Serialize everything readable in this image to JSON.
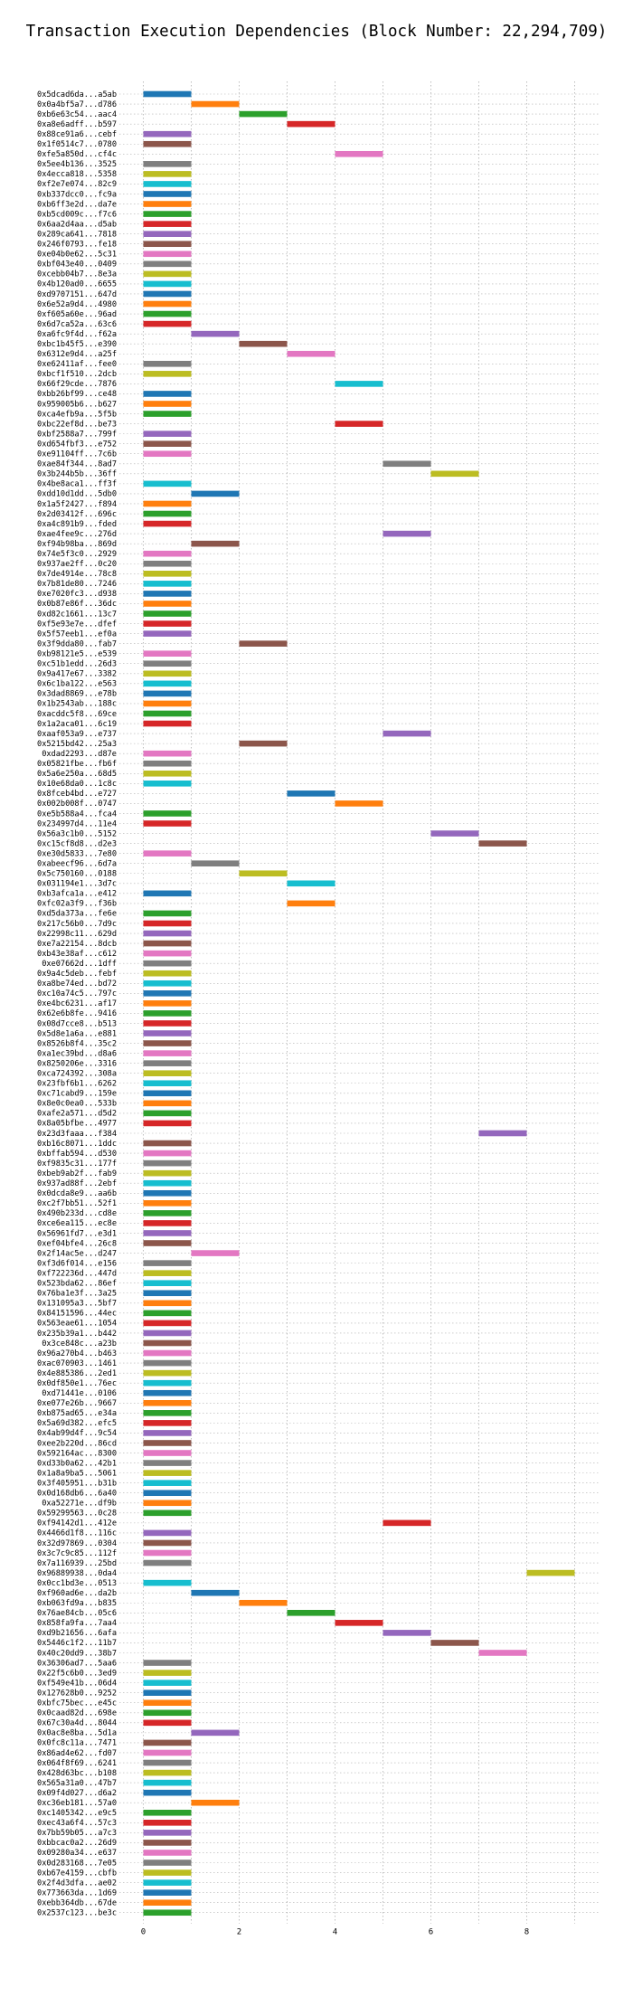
{
  "chart_data": {
    "type": "gantt",
    "title": "Transaction Execution Dependencies (Block Number: 22,294,709)",
    "xlabel": "",
    "ylabel": "",
    "grid": true,
    "xlim": [
      -0.5,
      9.5
    ],
    "xticks": [
      0,
      2,
      4,
      6,
      8
    ],
    "palette": [
      "#1f77b4",
      "#ff7f0e",
      "#2ca02c",
      "#d62728",
      "#9467bd",
      "#8c564b",
      "#e377c2",
      "#7f7f7f",
      "#bcbd22",
      "#17becf"
    ],
    "rows": [
      {
        "label": "0x5dcad6da...a5ab",
        "start": 0
      },
      {
        "label": "0x0a4bf5a7...d786",
        "start": 1
      },
      {
        "label": "0xb6e63c54...aac4",
        "start": 2
      },
      {
        "label": "0xa8e6adff...b597",
        "start": 3
      },
      {
        "label": "0x88ce91a6...cebf",
        "start": 0
      },
      {
        "label": "0x1f0514c7...0780",
        "start": 0
      },
      {
        "label": "0xfe5a850d...cf4c",
        "start": 4
      },
      {
        "label": "0x5ee4b136...3525",
        "start": 0
      },
      {
        "label": "0x4ecca818...5358",
        "start": 0
      },
      {
        "label": "0xf2e7e074...82c9",
        "start": 0
      },
      {
        "label": "0xb337dcc0...fc9a",
        "start": 0
      },
      {
        "label": "0xb6ff3e2d...da7e",
        "start": 0
      },
      {
        "label": "0xb5cd009c...f7c6",
        "start": 0
      },
      {
        "label": "0x6aa2d4aa...d5ab",
        "start": 0
      },
      {
        "label": "0x289ca641...7818",
        "start": 0
      },
      {
        "label": "0x246f0793...fe18",
        "start": 0
      },
      {
        "label": "0xe04b0e62...5c31",
        "start": 0
      },
      {
        "label": "0xbf043e40...0409",
        "start": 0
      },
      {
        "label": "0xcebb04b7...8e3a",
        "start": 0
      },
      {
        "label": "0x4b120ad0...6655",
        "start": 0
      },
      {
        "label": "0xd9707151...647d",
        "start": 0
      },
      {
        "label": "0x6e52a9d4...4980",
        "start": 0
      },
      {
        "label": "0xf605a60e...96ad",
        "start": 0
      },
      {
        "label": "0x6d7ca52a...63c6",
        "start": 0
      },
      {
        "label": "0xa6fc9f4d...f62a",
        "start": 1
      },
      {
        "label": "0xbc1b45f5...e390",
        "start": 2
      },
      {
        "label": "0x6312e9d4...a25f",
        "start": 3
      },
      {
        "label": "0xe62411af...fee0",
        "start": 0
      },
      {
        "label": "0xbcf1f510...2dcb",
        "start": 0
      },
      {
        "label": "0x66f29cde...7876",
        "start": 4
      },
      {
        "label": "0xbb26bf99...ce48",
        "start": 0
      },
      {
        "label": "0x959005b6...b627",
        "start": 0
      },
      {
        "label": "0xca4efb9a...5f5b",
        "start": 0
      },
      {
        "label": "0xbc22ef8d...be73",
        "start": 4
      },
      {
        "label": "0xbf2588a7...799f",
        "start": 0
      },
      {
        "label": "0xd654fbf3...e752",
        "start": 0
      },
      {
        "label": "0xe91104ff...7c6b",
        "start": 0
      },
      {
        "label": "0xae84f344...8ad7",
        "start": 5
      },
      {
        "label": "0x3b244b5b...36ff",
        "start": 6
      },
      {
        "label": "0x4be8aca1...ff3f",
        "start": 0
      },
      {
        "label": "0xdd10d1dd...5db0",
        "start": 1
      },
      {
        "label": "0x1a5f2427...f894",
        "start": 0
      },
      {
        "label": "0x2d03412f...696c",
        "start": 0
      },
      {
        "label": "0xa4c891b9...fded",
        "start": 0
      },
      {
        "label": "0xae4fee9c...276d",
        "start": 5
      },
      {
        "label": "0xf94b98ba...869d",
        "start": 1
      },
      {
        "label": "0x74e5f3c0...2929",
        "start": 0
      },
      {
        "label": "0x937ae2ff...0c20",
        "start": 0
      },
      {
        "label": "0x7de4914e...78c8",
        "start": 0
      },
      {
        "label": "0x7b81de80...7246",
        "start": 0
      },
      {
        "label": "0xe7020fc3...d938",
        "start": 0
      },
      {
        "label": "0x0b87e86f...36dc",
        "start": 0
      },
      {
        "label": "0xd82c1661...13c7",
        "start": 0
      },
      {
        "label": "0xf5e93e7e...dfef",
        "start": 0
      },
      {
        "label": "0x5f57eeb1...ef0a",
        "start": 0
      },
      {
        "label": "0x3f9dda80...fab7",
        "start": 2
      },
      {
        "label": "0xb98121e5...e539",
        "start": 0
      },
      {
        "label": "0xc51b1edd...26d3",
        "start": 0
      },
      {
        "label": "0x9a417e67...3382",
        "start": 0
      },
      {
        "label": "0x6c1ba122...e563",
        "start": 0
      },
      {
        "label": "0x3dad8869...e78b",
        "start": 0
      },
      {
        "label": "0x1b2543ab...188c",
        "start": 0
      },
      {
        "label": "0xacddc5f8...69ce",
        "start": 0
      },
      {
        "label": "0x1a2aca01...6c19",
        "start": 0
      },
      {
        "label": "0xaaf053a9...e737",
        "start": 5
      },
      {
        "label": "0x5215bd42...25a3",
        "start": 2
      },
      {
        "label": "0xdad2293...d87e",
        "start": 0
      },
      {
        "label": "0x05821fbe...fb6f",
        "start": 0
      },
      {
        "label": "0x5a6e250a...68d5",
        "start": 0
      },
      {
        "label": "0x10e68da0...1c8c",
        "start": 0
      },
      {
        "label": "0x8fceb4bd...e727",
        "start": 3
      },
      {
        "label": "0x002b008f...0747",
        "start": 4
      },
      {
        "label": "0xe5b588a4...fca4",
        "start": 0
      },
      {
        "label": "0x234997d4...11e4",
        "start": 0
      },
      {
        "label": "0x56a3c1b0...5152",
        "start": 6
      },
      {
        "label": "0xc15cf8d8...d2e3",
        "start": 7
      },
      {
        "label": "0xe30d5833...7e80",
        "start": 0
      },
      {
        "label": "0xabeecf96...6d7a",
        "start": 1
      },
      {
        "label": "0x5c750160...0188",
        "start": 2
      },
      {
        "label": "0x031194e1...3d7c",
        "start": 3
      },
      {
        "label": "0xb3afca1a...e412",
        "start": 0
      },
      {
        "label": "0xfc02a3f9...f36b",
        "start": 3
      },
      {
        "label": "0xd5da373a...fe6e",
        "start": 0
      },
      {
        "label": "0x217c56b0...7d9c",
        "start": 0
      },
      {
        "label": "0x22998c11...629d",
        "start": 0
      },
      {
        "label": "0xe7a22154...8dcb",
        "start": 0
      },
      {
        "label": "0xb43e38af...c612",
        "start": 0
      },
      {
        "label": "0xe07662d...1dff",
        "start": 0
      },
      {
        "label": "0x9a4c5deb...febf",
        "start": 0
      },
      {
        "label": "0xa8be74ed...bd72",
        "start": 0
      },
      {
        "label": "0xc10a74c5...797c",
        "start": 0
      },
      {
        "label": "0xe4bc6231...af17",
        "start": 0
      },
      {
        "label": "0x62e6b8fe...9416",
        "start": 0
      },
      {
        "label": "0x08d7cce8...b513",
        "start": 0
      },
      {
        "label": "0x5d8e1a6a...e881",
        "start": 0
      },
      {
        "label": "0x8526b8f4...35c2",
        "start": 0
      },
      {
        "label": "0xa1ec39bd...d8a6",
        "start": 0
      },
      {
        "label": "0x8250206e...3316",
        "start": 0
      },
      {
        "label": "0xca724392...308a",
        "start": 0
      },
      {
        "label": "0x23fbf6b1...6262",
        "start": 0
      },
      {
        "label": "0xc71cabd9...159e",
        "start": 0
      },
      {
        "label": "0x8e0c0ea0...533b",
        "start": 0
      },
      {
        "label": "0xafe2a571...d5d2",
        "start": 0
      },
      {
        "label": "0x8a05bfbe...4977",
        "start": 0
      },
      {
        "label": "0x23d3faaa...f384",
        "start": 7
      },
      {
        "label": "0xb16c8071...1ddc",
        "start": 0
      },
      {
        "label": "0xbffab594...d530",
        "start": 0
      },
      {
        "label": "0xf9835c31...177f",
        "start": 0
      },
      {
        "label": "0xbeb9ab2f...fab9",
        "start": 0
      },
      {
        "label": "0x937ad88f...2ebf",
        "start": 0
      },
      {
        "label": "0x0dcda8e9...aa6b",
        "start": 0
      },
      {
        "label": "0xc2f7bb51...52f1",
        "start": 0
      },
      {
        "label": "0x490b233d...cd8e",
        "start": 0
      },
      {
        "label": "0xce6ea115...ec8e",
        "start": 0
      },
      {
        "label": "0x56961fd7...e3d1",
        "start": 0
      },
      {
        "label": "0xef04bfe4...26c8",
        "start": 0
      },
      {
        "label": "0x2f14ac5e...d247",
        "start": 1
      },
      {
        "label": "0xf3d6f014...e156",
        "start": 0
      },
      {
        "label": "0xf722236d...447d",
        "start": 0
      },
      {
        "label": "0x523bda62...86ef",
        "start": 0
      },
      {
        "label": "0x76ba1e3f...3a25",
        "start": 0
      },
      {
        "label": "0x131095a3...5bf7",
        "start": 0
      },
      {
        "label": "0x84151596...44ec",
        "start": 0
      },
      {
        "label": "0x563eae61...1054",
        "start": 0
      },
      {
        "label": "0x235b39a1...b442",
        "start": 0
      },
      {
        "label": "0x3ce848c...a23b",
        "start": 0
      },
      {
        "label": "0x96a270b4...b463",
        "start": 0
      },
      {
        "label": "0xac070903...1461",
        "start": 0
      },
      {
        "label": "0x4e885386...2ed1",
        "start": 0
      },
      {
        "label": "0x0df850e1...76ec",
        "start": 0
      },
      {
        "label": "0xd71441e...0106",
        "start": 0
      },
      {
        "label": "0xe077e26b...9667",
        "start": 0
      },
      {
        "label": "0xb875ad65...e34a",
        "start": 0
      },
      {
        "label": "0x5a69d382...efc5",
        "start": 0
      },
      {
        "label": "0x4ab99d4f...9c54",
        "start": 0
      },
      {
        "label": "0xee2b220d...86cd",
        "start": 0
      },
      {
        "label": "0x592164ac...8300",
        "start": 0
      },
      {
        "label": "0xd33b0a62...42b1",
        "start": 0
      },
      {
        "label": "0x1a8a9ba5...5061",
        "start": 0
      },
      {
        "label": "0x3f405951...b31b",
        "start": 0
      },
      {
        "label": "0x0d168db6...6a40",
        "start": 0
      },
      {
        "label": "0xa52271e...df9b",
        "start": 0
      },
      {
        "label": "0x59299563...0c28",
        "start": 0
      },
      {
        "label": "0xf94142d1...412e",
        "start": 5
      },
      {
        "label": "0x4466d1f8...116c",
        "start": 0
      },
      {
        "label": "0x32d97869...0304",
        "start": 0
      },
      {
        "label": "0x3c7c9c85...112f",
        "start": 0
      },
      {
        "label": "0x7a116939...25bd",
        "start": 0
      },
      {
        "label": "0x96889938...0da4",
        "start": 8
      },
      {
        "label": "0x0cc1bd3e...0513",
        "start": 0
      },
      {
        "label": "0xf960ad6e...da2b",
        "start": 1
      },
      {
        "label": "0xb063fd9a...b835",
        "start": 2
      },
      {
        "label": "0x76ae84cb...05c6",
        "start": 3
      },
      {
        "label": "0x858fa9fa...7aa4",
        "start": 4
      },
      {
        "label": "0xd9b21656...6afa",
        "start": 5
      },
      {
        "label": "0x5446c1f2...11b7",
        "start": 6
      },
      {
        "label": "0x40c20dd9...38b7",
        "start": 7
      },
      {
        "label": "0x36306ad7...5aa6",
        "start": 0
      },
      {
        "label": "0x22f5c6b0...3ed9",
        "start": 0
      },
      {
        "label": "0xf549e41b...06d4",
        "start": 0
      },
      {
        "label": "0x127628b0...9252",
        "start": 0
      },
      {
        "label": "0xbfc75bec...e45c",
        "start": 0
      },
      {
        "label": "0x0caad82d...698e",
        "start": 0
      },
      {
        "label": "0x67c30a4d...8044",
        "start": 0
      },
      {
        "label": "0x0ac8e8ba...5d1a",
        "start": 1
      },
      {
        "label": "0x0fc8c11a...7471",
        "start": 0
      },
      {
        "label": "0x86ad4e62...fd07",
        "start": 0
      },
      {
        "label": "0x064f8f69...6241",
        "start": 0
      },
      {
        "label": "0x428d63bc...b108",
        "start": 0
      },
      {
        "label": "0x565a31a0...47b7",
        "start": 0
      },
      {
        "label": "0x09f4d027...d6a2",
        "start": 0
      },
      {
        "label": "0xc36eb181...57a0",
        "start": 1
      },
      {
        "label": "0xc1405342...e9c5",
        "start": 0
      },
      {
        "label": "0xec43a6f4...57c3",
        "start": 0
      },
      {
        "label": "0x7bb59b05...a7c3",
        "start": 0
      },
      {
        "label": "0xbbcac0a2...26d9",
        "start": 0
      },
      {
        "label": "0x09280a34...e637",
        "start": 0
      },
      {
        "label": "0x0d283168...7e05",
        "start": 0
      },
      {
        "label": "0xb67e4159...cbfb",
        "start": 0
      },
      {
        "label": "0x2f4d3dfa...ae02",
        "start": 0
      },
      {
        "label": "0x773663da...1d69",
        "start": 0
      },
      {
        "label": "0xebb364db...67de",
        "start": 0
      },
      {
        "label": "0x2537c123...be3c",
        "start": 0
      }
    ]
  }
}
